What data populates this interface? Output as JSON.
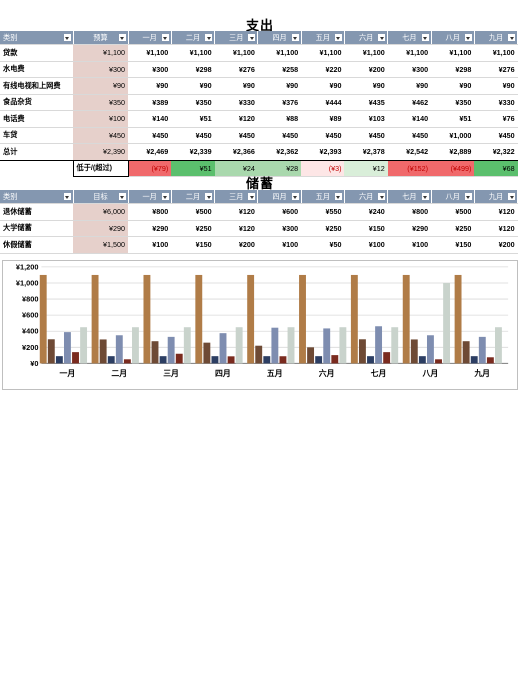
{
  "expense": {
    "title": "支出",
    "headers": [
      "类别",
      "预算",
      "一月",
      "二月",
      "三月",
      "四月",
      "五月",
      "六月",
      "七月",
      "八月",
      "九月"
    ],
    "rows": [
      {
        "label": "贷款",
        "budget": "¥1,100",
        "values": [
          "¥1,100",
          "¥1,100",
          "¥1,100",
          "¥1,100",
          "¥1,100",
          "¥1,100",
          "¥1,100",
          "¥1,100",
          "¥1,100"
        ]
      },
      {
        "label": "水电费",
        "budget": "¥300",
        "values": [
          "¥300",
          "¥298",
          "¥276",
          "¥258",
          "¥220",
          "¥200",
          "¥300",
          "¥298",
          "¥276"
        ]
      },
      {
        "label": "有线电视和上网费",
        "budget": "¥90",
        "values": [
          "¥90",
          "¥90",
          "¥90",
          "¥90",
          "¥90",
          "¥90",
          "¥90",
          "¥90",
          "¥90"
        ]
      },
      {
        "label": "食品杂货",
        "budget": "¥350",
        "values": [
          "¥389",
          "¥350",
          "¥330",
          "¥376",
          "¥444",
          "¥435",
          "¥462",
          "¥350",
          "¥330"
        ]
      },
      {
        "label": "电话费",
        "budget": "¥100",
        "values": [
          "¥140",
          "¥51",
          "¥120",
          "¥88",
          "¥89",
          "¥103",
          "¥140",
          "¥51",
          "¥76"
        ]
      },
      {
        "label": "车贷",
        "budget": "¥450",
        "values": [
          "¥450",
          "¥450",
          "¥450",
          "¥450",
          "¥450",
          "¥450",
          "¥450",
          "¥1,000",
          "¥450"
        ]
      }
    ],
    "total": {
      "label": "总计",
      "budget": "¥2,390",
      "values": [
        "¥2,469",
        "¥2,339",
        "¥2,366",
        "¥2,362",
        "¥2,393",
        "¥2,378",
        "¥2,542",
        "¥2,889",
        "¥2,322"
      ]
    },
    "over": {
      "label": "低于/(超过)",
      "values": [
        "(¥79)",
        "¥51",
        "¥24",
        "¥28",
        "(¥3)",
        "¥12",
        "(¥152)",
        "(¥499)",
        "¥68"
      ]
    }
  },
  "savings": {
    "title": "储蓄",
    "headers": [
      "类别",
      "目标",
      "一月",
      "二月",
      "三月",
      "四月",
      "五月",
      "六月",
      "七月",
      "八月",
      "九月"
    ],
    "rows": [
      {
        "label": "退休储蓄",
        "budget": "¥6,000",
        "values": [
          "¥800",
          "¥500",
          "¥120",
          "¥600",
          "¥550",
          "¥240",
          "¥800",
          "¥500",
          "¥120"
        ]
      },
      {
        "label": "大学储蓄",
        "budget": "¥290",
        "values": [
          "¥290",
          "¥250",
          "¥120",
          "¥300",
          "¥250",
          "¥150",
          "¥290",
          "¥250",
          "¥120"
        ]
      },
      {
        "label": "休假储蓄",
        "budget": "¥1,500",
        "values": [
          "¥100",
          "¥150",
          "¥200",
          "¥100",
          "¥50",
          "¥100",
          "¥100",
          "¥150",
          "¥200"
        ]
      }
    ]
  },
  "chart_data": {
    "type": "bar",
    "categories": [
      "一月",
      "二月",
      "三月",
      "四月",
      "五月",
      "六月",
      "七月",
      "八月",
      "九月"
    ],
    "yticks": [
      "¥0",
      "¥200",
      "¥400",
      "¥600",
      "¥800",
      "¥1,000",
      "¥1,200"
    ],
    "ylim": [
      0,
      1200
    ],
    "series": [
      {
        "values": [
          1100,
          1100,
          1100,
          1100,
          1100,
          1100,
          1100,
          1100,
          1100
        ],
        "color": "#b07c47"
      },
      {
        "values": [
          300,
          298,
          276,
          258,
          220,
          200,
          300,
          298,
          276
        ],
        "color": "#6e4a35"
      },
      {
        "values": [
          90,
          90,
          90,
          90,
          90,
          90,
          90,
          90,
          90
        ],
        "color": "#2c3e63"
      },
      {
        "values": [
          389,
          350,
          330,
          376,
          444,
          435,
          462,
          350,
          330
        ],
        "color": "#7e8db0"
      },
      {
        "values": [
          140,
          51,
          120,
          88,
          89,
          103,
          140,
          51,
          76
        ],
        "color": "#7a2b1f"
      },
      {
        "values": [
          450,
          450,
          450,
          450,
          450,
          450,
          450,
          1000,
          450
        ],
        "color": "#c9d3cc"
      }
    ],
    "grid": true,
    "legend": "none"
  }
}
